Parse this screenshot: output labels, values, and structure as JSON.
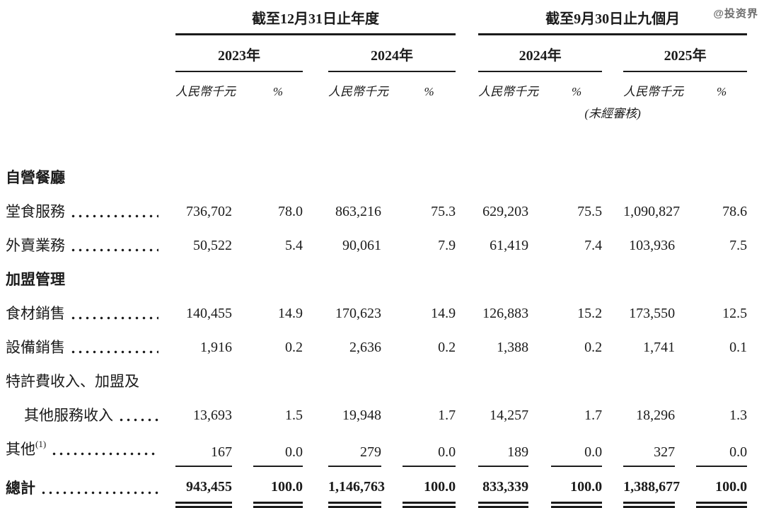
{
  "watermark": "@投资界",
  "colors": {
    "text": "#1b1b1b",
    "rule": "#1b1b1b",
    "background": "#ffffff",
    "watermark": "#6f6f6f"
  },
  "header": {
    "groups": [
      {
        "label": "截至12月31日止年度",
        "years": [
          "2023年",
          "2024年"
        ]
      },
      {
        "label": "截至9月30日止九個月",
        "years": [
          "2024年",
          "2025年"
        ]
      }
    ],
    "unit_label": "人民幣千元",
    "percent_label": "%",
    "unaudited_note": "(未經審核)"
  },
  "rows": [
    {
      "label": "自營餐廳",
      "type": "section"
    },
    {
      "label": "堂食服務",
      "type": "data",
      "dots": true,
      "values": [
        "736,702",
        "78.0",
        "863,216",
        "75.3",
        "629,203",
        "75.5",
        "1,090,827",
        "78.6"
      ]
    },
    {
      "label": "外賣業務",
      "type": "data",
      "dots": true,
      "values": [
        "50,522",
        "5.4",
        "90,061",
        "7.9",
        "61,419",
        "7.4",
        "103,936",
        "7.5"
      ]
    },
    {
      "label": "加盟管理",
      "type": "section"
    },
    {
      "label": "食材銷售",
      "type": "data",
      "dots": true,
      "values": [
        "140,455",
        "14.9",
        "170,623",
        "14.9",
        "126,883",
        "15.2",
        "173,550",
        "12.5"
      ]
    },
    {
      "label": "設備銷售",
      "type": "data",
      "dots": true,
      "values": [
        "1,916",
        "0.2",
        "2,636",
        "0.2",
        "1,388",
        "0.2",
        "1,741",
        "0.1"
      ]
    },
    {
      "label": "特許費收入、加盟及",
      "type": "continuation"
    },
    {
      "label": "其他服務收入",
      "type": "data",
      "indent": true,
      "dots": true,
      "values": [
        "13,693",
        "1.5",
        "19,948",
        "1.7",
        "14,257",
        "1.7",
        "18,296",
        "1.3"
      ]
    },
    {
      "label": "其他",
      "sup": "(1)",
      "type": "data",
      "dots": true,
      "rule_below": true,
      "values": [
        "167",
        "0.0",
        "279",
        "0.0",
        "189",
        "0.0",
        "327",
        "0.0"
      ]
    },
    {
      "label": "總計",
      "type": "total",
      "dots": true,
      "values": [
        "943,455",
        "100.0",
        "1,146,763",
        "100.0",
        "833,339",
        "100.0",
        "1,388,677",
        "100.0"
      ]
    }
  ]
}
